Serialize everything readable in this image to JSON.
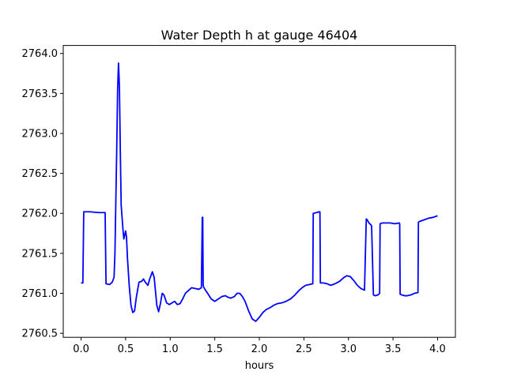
{
  "chart_data": {
    "type": "line",
    "title": "Water Depth h at gauge 46404",
    "xlabel": "hours",
    "ylabel": "",
    "xlim": [
      -0.2,
      4.2
    ],
    "ylim": [
      2760.45,
      2764.1
    ],
    "grid": false,
    "line_color": "#0000ff",
    "x_ticks": [
      0.0,
      0.5,
      1.0,
      1.5,
      2.0,
      2.5,
      3.0,
      3.5,
      4.0
    ],
    "x_tick_labels": [
      "0.0",
      "0.5",
      "1.0",
      "1.5",
      "2.0",
      "2.5",
      "3.0",
      "3.5",
      "4.0"
    ],
    "y_ticks": [
      2760.5,
      2761.0,
      2761.5,
      2762.0,
      2762.5,
      2763.0,
      2763.5,
      2764.0
    ],
    "y_tick_labels": [
      "2760.5",
      "2761.0",
      "2761.5",
      "2762.0",
      "2762.5",
      "2763.0",
      "2763.5",
      "2764.0"
    ],
    "series": [
      {
        "x": [
          0.0,
          0.02,
          0.03,
          0.1,
          0.2,
          0.27,
          0.28,
          0.32,
          0.35,
          0.37,
          0.38,
          0.4,
          0.41,
          0.42,
          0.43,
          0.44,
          0.45,
          0.46,
          0.47,
          0.48,
          0.5,
          0.51,
          0.52,
          0.54,
          0.56,
          0.58,
          0.6,
          0.62,
          0.65,
          0.68,
          0.7,
          0.72,
          0.75,
          0.77,
          0.8,
          0.82,
          0.85,
          0.87,
          0.89,
          0.91,
          0.93,
          0.96,
          0.99,
          1.02,
          1.05,
          1.08,
          1.11,
          1.14,
          1.17,
          1.2,
          1.24,
          1.28,
          1.32,
          1.35,
          1.36,
          1.365,
          1.37,
          1.375,
          1.38,
          1.385,
          1.39,
          1.42,
          1.46,
          1.5,
          1.54,
          1.58,
          1.62,
          1.65,
          1.68,
          1.72,
          1.75,
          1.78,
          1.81,
          1.84,
          1.88,
          1.92,
          1.96,
          2.0,
          2.04,
          2.08,
          2.12,
          2.16,
          2.2,
          2.25,
          2.3,
          2.35,
          2.4,
          2.44,
          2.48,
          2.52,
          2.56,
          2.6,
          2.605,
          2.64,
          2.67,
          2.68,
          2.685,
          2.72,
          2.76,
          2.8,
          2.85,
          2.9,
          2.94,
          2.98,
          3.02,
          3.06,
          3.1,
          3.14,
          3.18,
          3.2,
          3.21,
          3.23,
          3.25,
          3.26,
          3.28,
          3.3,
          3.33,
          3.35,
          3.355,
          3.38,
          3.42,
          3.47,
          3.52,
          3.57,
          3.575,
          3.58,
          3.6,
          3.63,
          3.66,
          3.7,
          3.74,
          3.78,
          3.785,
          3.8,
          3.85,
          3.9,
          3.95,
          4.0
        ],
        "values": [
          2761.13,
          2761.13,
          2762.02,
          2762.02,
          2762.01,
          2762.01,
          2761.12,
          2761.11,
          2761.14,
          2761.2,
          2761.5,
          2762.8,
          2763.55,
          2763.88,
          2763.6,
          2762.8,
          2762.1,
          2761.95,
          2761.8,
          2761.68,
          2761.78,
          2761.7,
          2761.45,
          2761.1,
          2760.85,
          2760.76,
          2760.78,
          2760.95,
          2761.14,
          2761.15,
          2761.18,
          2761.14,
          2761.1,
          2761.18,
          2761.27,
          2761.2,
          2760.85,
          2760.77,
          2760.87,
          2761.0,
          2760.98,
          2760.88,
          2760.86,
          2760.88,
          2760.9,
          2760.86,
          2760.87,
          2760.93,
          2761.0,
          2761.03,
          2761.07,
          2761.06,
          2761.05,
          2761.07,
          2761.95,
          2761.95,
          2761.1,
          2761.08,
          2761.07,
          2761.06,
          2761.05,
          2761.0,
          2760.93,
          2760.9,
          2760.93,
          2760.96,
          2760.97,
          2760.95,
          2760.94,
          2760.96,
          2761.0,
          2761.0,
          2760.96,
          2760.9,
          2760.78,
          2760.68,
          2760.65,
          2760.7,
          2760.76,
          2760.8,
          2760.82,
          2760.85,
          2760.87,
          2760.88,
          2760.9,
          2760.93,
          2760.98,
          2761.03,
          2761.07,
          2761.1,
          2761.11,
          2761.12,
          2762.0,
          2762.01,
          2762.02,
          2762.02,
          2761.13,
          2761.13,
          2761.12,
          2761.1,
          2761.12,
          2761.15,
          2761.19,
          2761.22,
          2761.21,
          2761.16,
          2761.1,
          2761.06,
          2761.04,
          2761.93,
          2761.92,
          2761.88,
          2761.86,
          2761.84,
          2760.98,
          2760.97,
          2760.98,
          2761.0,
          2761.87,
          2761.88,
          2761.88,
          2761.88,
          2761.87,
          2761.88,
          2761.87,
          2760.99,
          2760.98,
          2760.97,
          2760.97,
          2760.98,
          2761.0,
          2761.01,
          2761.89,
          2761.9,
          2761.92,
          2761.94,
          2761.95,
          2761.97
        ]
      }
    ]
  }
}
